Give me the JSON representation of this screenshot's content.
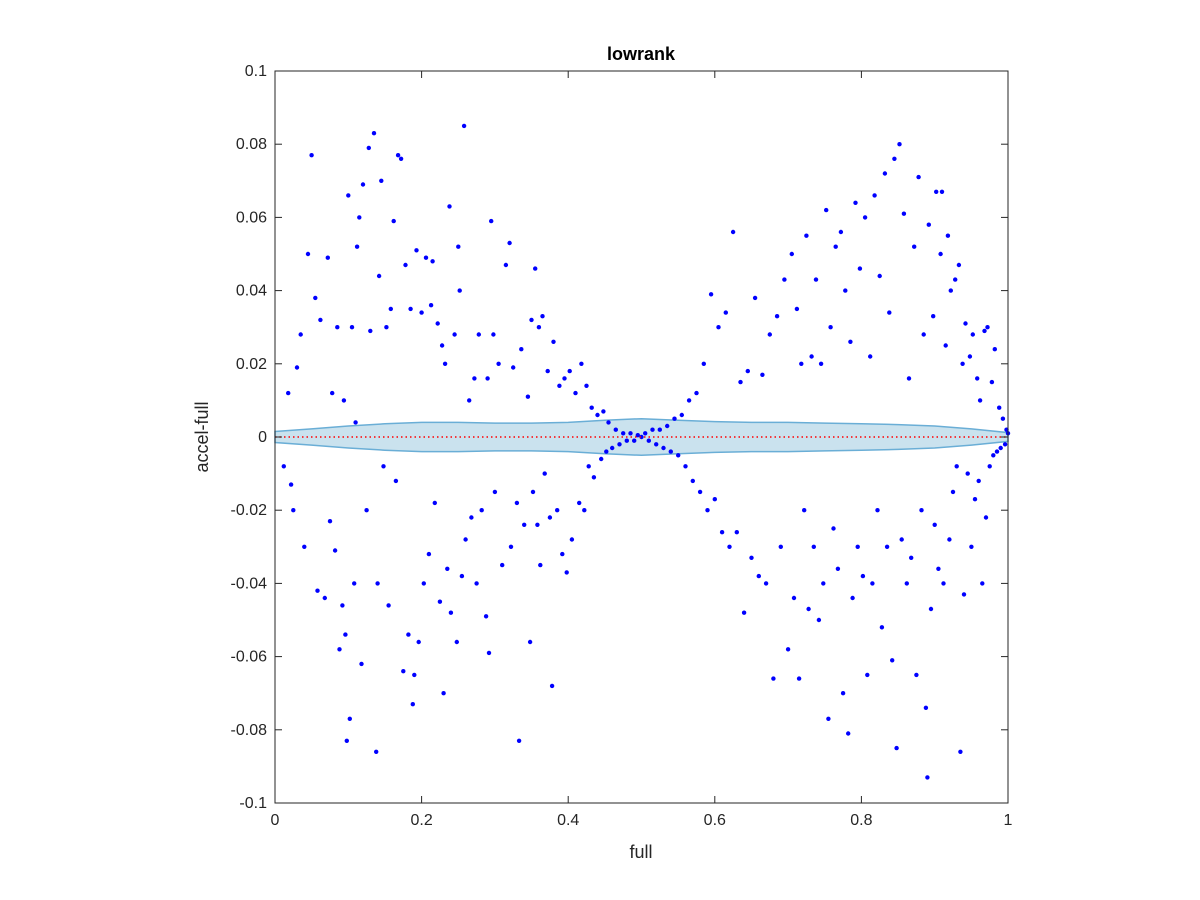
{
  "chart_data": {
    "type": "scatter",
    "title": "lowrank",
    "xlabel": "full",
    "ylabel": "accel-full",
    "xlim": [
      0,
      1
    ],
    "ylim": [
      -0.1,
      0.1
    ],
    "x_ticks": [
      "0",
      "0.2",
      "0.4",
      "0.6",
      "0.8",
      "1"
    ],
    "y_ticks": [
      "-0.1",
      "-0.08",
      "-0.06",
      "-0.04",
      "-0.02",
      "0",
      "0.02",
      "0.04",
      "0.06",
      "0.08",
      "0.1"
    ],
    "grid": false,
    "colors": {
      "points": "#0000ff",
      "band_fill": "#a6cee3",
      "band_edge": "#6aaed6",
      "zero_line": "#ff0000",
      "axes": "#262626"
    },
    "band": {
      "x": [
        0,
        0.05,
        0.1,
        0.15,
        0.2,
        0.25,
        0.3,
        0.35,
        0.4,
        0.45,
        0.5,
        0.55,
        0.6,
        0.65,
        0.7,
        0.75,
        0.8,
        0.85,
        0.9,
        0.95,
        1.0
      ],
      "upper": [
        0.0015,
        0.0022,
        0.003,
        0.0036,
        0.004,
        0.004,
        0.0038,
        0.0038,
        0.004,
        0.0046,
        0.005,
        0.0046,
        0.0042,
        0.004,
        0.004,
        0.0038,
        0.0036,
        0.0034,
        0.003,
        0.0022,
        0.0012
      ],
      "lower": [
        -0.0015,
        -0.0022,
        -0.003,
        -0.0036,
        -0.004,
        -0.004,
        -0.0038,
        -0.0038,
        -0.004,
        -0.0046,
        -0.005,
        -0.0046,
        -0.0042,
        -0.004,
        -0.004,
        -0.0038,
        -0.0036,
        -0.0034,
        -0.003,
        -0.0022,
        -0.0012
      ]
    },
    "zero_line": {
      "y": 0,
      "style": "dotted"
    },
    "series": [
      {
        "points": [
          [
            0.018,
            0.012
          ],
          [
            0.012,
            -0.008
          ],
          [
            0.022,
            -0.013
          ],
          [
            0.025,
            -0.02
          ],
          [
            0.03,
            0.019
          ],
          [
            0.035,
            0.028
          ],
          [
            0.04,
            -0.03
          ],
          [
            0.045,
            0.05
          ],
          [
            0.05,
            0.077
          ],
          [
            0.055,
            0.038
          ],
          [
            0.058,
            -0.042
          ],
          [
            0.062,
            0.032
          ],
          [
            0.068,
            -0.044
          ],
          [
            0.072,
            0.049
          ],
          [
            0.075,
            -0.023
          ],
          [
            0.078,
            0.012
          ],
          [
            0.082,
            -0.031
          ],
          [
            0.085,
            0.03
          ],
          [
            0.088,
            -0.058
          ],
          [
            0.092,
            -0.046
          ],
          [
            0.094,
            0.01
          ],
          [
            0.096,
            -0.054
          ],
          [
            0.098,
            -0.083
          ],
          [
            0.1,
            0.066
          ],
          [
            0.102,
            -0.077
          ],
          [
            0.105,
            0.03
          ],
          [
            0.108,
            -0.04
          ],
          [
            0.11,
            0.004
          ],
          [
            0.112,
            0.052
          ],
          [
            0.115,
            0.06
          ],
          [
            0.118,
            -0.062
          ],
          [
            0.12,
            0.069
          ],
          [
            0.125,
            -0.02
          ],
          [
            0.128,
            0.079
          ],
          [
            0.13,
            0.029
          ],
          [
            0.135,
            0.083
          ],
          [
            0.138,
            -0.086
          ],
          [
            0.14,
            -0.04
          ],
          [
            0.142,
            0.044
          ],
          [
            0.145,
            0.07
          ],
          [
            0.148,
            -0.008
          ],
          [
            0.152,
            0.03
          ],
          [
            0.155,
            -0.046
          ],
          [
            0.158,
            0.035
          ],
          [
            0.162,
            0.059
          ],
          [
            0.165,
            -0.012
          ],
          [
            0.168,
            0.077
          ],
          [
            0.172,
            0.076
          ],
          [
            0.175,
            -0.064
          ],
          [
            0.178,
            0.047
          ],
          [
            0.182,
            -0.054
          ],
          [
            0.185,
            0.035
          ],
          [
            0.188,
            -0.073
          ],
          [
            0.19,
            -0.065
          ],
          [
            0.193,
            0.051
          ],
          [
            0.196,
            -0.056
          ],
          [
            0.2,
            0.034
          ],
          [
            0.203,
            -0.04
          ],
          [
            0.206,
            0.049
          ],
          [
            0.21,
            -0.032
          ],
          [
            0.213,
            0.036
          ],
          [
            0.215,
            0.048
          ],
          [
            0.218,
            -0.018
          ],
          [
            0.222,
            0.031
          ],
          [
            0.225,
            -0.045
          ],
          [
            0.228,
            0.025
          ],
          [
            0.23,
            -0.07
          ],
          [
            0.232,
            0.02
          ],
          [
            0.235,
            -0.036
          ],
          [
            0.238,
            0.063
          ],
          [
            0.24,
            -0.048
          ],
          [
            0.245,
            0.028
          ],
          [
            0.248,
            -0.056
          ],
          [
            0.25,
            0.052
          ],
          [
            0.252,
            0.04
          ],
          [
            0.255,
            -0.038
          ],
          [
            0.258,
            0.085
          ],
          [
            0.26,
            -0.028
          ],
          [
            0.265,
            0.01
          ],
          [
            0.268,
            -0.022
          ],
          [
            0.272,
            0.016
          ],
          [
            0.275,
            -0.04
          ],
          [
            0.278,
            0.028
          ],
          [
            0.282,
            -0.02
          ],
          [
            0.288,
            -0.049
          ],
          [
            0.29,
            0.016
          ],
          [
            0.292,
            -0.059
          ],
          [
            0.295,
            0.059
          ],
          [
            0.298,
            0.028
          ],
          [
            0.3,
            -0.015
          ],
          [
            0.305,
            0.02
          ],
          [
            0.31,
            -0.035
          ],
          [
            0.315,
            0.047
          ],
          [
            0.32,
            0.053
          ],
          [
            0.322,
            -0.03
          ],
          [
            0.325,
            0.019
          ],
          [
            0.33,
            -0.018
          ],
          [
            0.333,
            -0.083
          ],
          [
            0.336,
            0.024
          ],
          [
            0.34,
            -0.024
          ],
          [
            0.345,
            0.011
          ],
          [
            0.348,
            -0.056
          ],
          [
            0.35,
            0.032
          ],
          [
            0.352,
            -0.015
          ],
          [
            0.355,
            0.046
          ],
          [
            0.358,
            -0.024
          ],
          [
            0.36,
            0.03
          ],
          [
            0.362,
            -0.035
          ],
          [
            0.365,
            0.033
          ],
          [
            0.368,
            -0.01
          ],
          [
            0.372,
            0.018
          ],
          [
            0.375,
            -0.022
          ],
          [
            0.378,
            -0.068
          ],
          [
            0.38,
            0.026
          ],
          [
            0.385,
            -0.02
          ],
          [
            0.388,
            0.014
          ],
          [
            0.392,
            -0.032
          ],
          [
            0.395,
            0.016
          ],
          [
            0.398,
            -0.037
          ],
          [
            0.402,
            0.018
          ],
          [
            0.405,
            -0.028
          ],
          [
            0.41,
            0.012
          ],
          [
            0.415,
            -0.018
          ],
          [
            0.418,
            0.02
          ],
          [
            0.422,
            -0.02
          ],
          [
            0.425,
            0.014
          ],
          [
            0.428,
            -0.008
          ],
          [
            0.432,
            0.008
          ],
          [
            0.435,
            -0.011
          ],
          [
            0.44,
            0.006
          ],
          [
            0.445,
            -0.006
          ],
          [
            0.448,
            0.007
          ],
          [
            0.452,
            -0.004
          ],
          [
            0.455,
            0.004
          ],
          [
            0.46,
            -0.003
          ],
          [
            0.465,
            0.002
          ],
          [
            0.47,
            -0.002
          ],
          [
            0.475,
            0.001
          ],
          [
            0.48,
            -0.001
          ],
          [
            0.485,
            0.001
          ],
          [
            0.49,
            -0.001
          ],
          [
            0.495,
            0.0005
          ],
          [
            0.5,
            0.0
          ],
          [
            0.505,
            0.001
          ],
          [
            0.51,
            -0.001
          ],
          [
            0.515,
            0.002
          ],
          [
            0.52,
            -0.002
          ],
          [
            0.525,
            0.002
          ],
          [
            0.53,
            -0.003
          ],
          [
            0.535,
            0.003
          ],
          [
            0.54,
            -0.004
          ],
          [
            0.545,
            0.005
          ],
          [
            0.55,
            -0.005
          ],
          [
            0.555,
            0.006
          ],
          [
            0.56,
            -0.008
          ],
          [
            0.565,
            0.01
          ],
          [
            0.57,
            -0.012
          ],
          [
            0.575,
            0.012
          ],
          [
            0.58,
            -0.015
          ],
          [
            0.585,
            0.02
          ],
          [
            0.59,
            -0.02
          ],
          [
            0.595,
            0.039
          ],
          [
            0.6,
            -0.017
          ],
          [
            0.605,
            0.03
          ],
          [
            0.61,
            -0.026
          ],
          [
            0.615,
            0.034
          ],
          [
            0.62,
            -0.03
          ],
          [
            0.625,
            0.056
          ],
          [
            0.63,
            -0.026
          ],
          [
            0.635,
            0.015
          ],
          [
            0.64,
            -0.048
          ],
          [
            0.645,
            0.018
          ],
          [
            0.65,
            -0.033
          ],
          [
            0.655,
            0.038
          ],
          [
            0.66,
            -0.038
          ],
          [
            0.665,
            0.017
          ],
          [
            0.67,
            -0.04
          ],
          [
            0.675,
            0.028
          ],
          [
            0.68,
            -0.066
          ],
          [
            0.685,
            0.033
          ],
          [
            0.69,
            -0.03
          ],
          [
            0.695,
            0.043
          ],
          [
            0.7,
            -0.058
          ],
          [
            0.705,
            0.05
          ],
          [
            0.708,
            -0.044
          ],
          [
            0.712,
            0.035
          ],
          [
            0.715,
            -0.066
          ],
          [
            0.718,
            0.02
          ],
          [
            0.722,
            -0.02
          ],
          [
            0.725,
            0.055
          ],
          [
            0.728,
            -0.047
          ],
          [
            0.732,
            0.022
          ],
          [
            0.735,
            -0.03
          ],
          [
            0.738,
            0.043
          ],
          [
            0.742,
            -0.05
          ],
          [
            0.745,
            0.02
          ],
          [
            0.748,
            -0.04
          ],
          [
            0.752,
            0.062
          ],
          [
            0.755,
            -0.077
          ],
          [
            0.758,
            0.03
          ],
          [
            0.762,
            -0.025
          ],
          [
            0.765,
            0.052
          ],
          [
            0.768,
            -0.036
          ],
          [
            0.772,
            0.056
          ],
          [
            0.775,
            -0.07
          ],
          [
            0.778,
            0.04
          ],
          [
            0.782,
            -0.081
          ],
          [
            0.785,
            0.026
          ],
          [
            0.788,
            -0.044
          ],
          [
            0.792,
            0.064
          ],
          [
            0.795,
            -0.03
          ],
          [
            0.798,
            0.046
          ],
          [
            0.802,
            -0.038
          ],
          [
            0.805,
            0.06
          ],
          [
            0.808,
            -0.065
          ],
          [
            0.812,
            0.022
          ],
          [
            0.815,
            -0.04
          ],
          [
            0.818,
            0.066
          ],
          [
            0.822,
            -0.02
          ],
          [
            0.825,
            0.044
          ],
          [
            0.828,
            -0.052
          ],
          [
            0.832,
            0.072
          ],
          [
            0.835,
            -0.03
          ],
          [
            0.838,
            0.034
          ],
          [
            0.842,
            -0.061
          ],
          [
            0.845,
            0.076
          ],
          [
            0.848,
            -0.085
          ],
          [
            0.852,
            0.08
          ],
          [
            0.855,
            -0.028
          ],
          [
            0.858,
            0.061
          ],
          [
            0.862,
            -0.04
          ],
          [
            0.865,
            0.016
          ],
          [
            0.868,
            -0.033
          ],
          [
            0.872,
            0.052
          ],
          [
            0.875,
            -0.065
          ],
          [
            0.878,
            0.071
          ],
          [
            0.882,
            -0.02
          ],
          [
            0.885,
            0.028
          ],
          [
            0.888,
            -0.074
          ],
          [
            0.89,
            -0.093
          ],
          [
            0.892,
            0.058
          ],
          [
            0.895,
            -0.047
          ],
          [
            0.898,
            0.033
          ],
          [
            0.9,
            -0.024
          ],
          [
            0.902,
            0.067
          ],
          [
            0.905,
            -0.036
          ],
          [
            0.908,
            0.05
          ],
          [
            0.91,
            0.067
          ],
          [
            0.912,
            -0.04
          ],
          [
            0.915,
            0.025
          ],
          [
            0.918,
            0.055
          ],
          [
            0.92,
            -0.028
          ],
          [
            0.922,
            0.04
          ],
          [
            0.925,
            -0.015
          ],
          [
            0.928,
            0.043
          ],
          [
            0.93,
            -0.008
          ],
          [
            0.933,
            0.047
          ],
          [
            0.935,
            -0.086
          ],
          [
            0.938,
            0.02
          ],
          [
            0.94,
            -0.043
          ],
          [
            0.942,
            0.031
          ],
          [
            0.945,
            -0.01
          ],
          [
            0.948,
            0.022
          ],
          [
            0.95,
            -0.03
          ],
          [
            0.952,
            0.028
          ],
          [
            0.955,
            -0.017
          ],
          [
            0.958,
            0.016
          ],
          [
            0.96,
            -0.012
          ],
          [
            0.962,
            0.01
          ],
          [
            0.965,
            -0.04
          ],
          [
            0.968,
            0.029
          ],
          [
            0.97,
            -0.022
          ],
          [
            0.972,
            0.03
          ],
          [
            0.975,
            -0.008
          ],
          [
            0.978,
            0.015
          ],
          [
            0.98,
            -0.005
          ],
          [
            0.982,
            0.024
          ],
          [
            0.985,
            -0.004
          ],
          [
            0.988,
            0.008
          ],
          [
            0.99,
            -0.003
          ],
          [
            0.993,
            0.005
          ],
          [
            0.996,
            -0.002
          ],
          [
            0.998,
            0.002
          ],
          [
            1.0,
            0.001
          ]
        ]
      }
    ]
  }
}
